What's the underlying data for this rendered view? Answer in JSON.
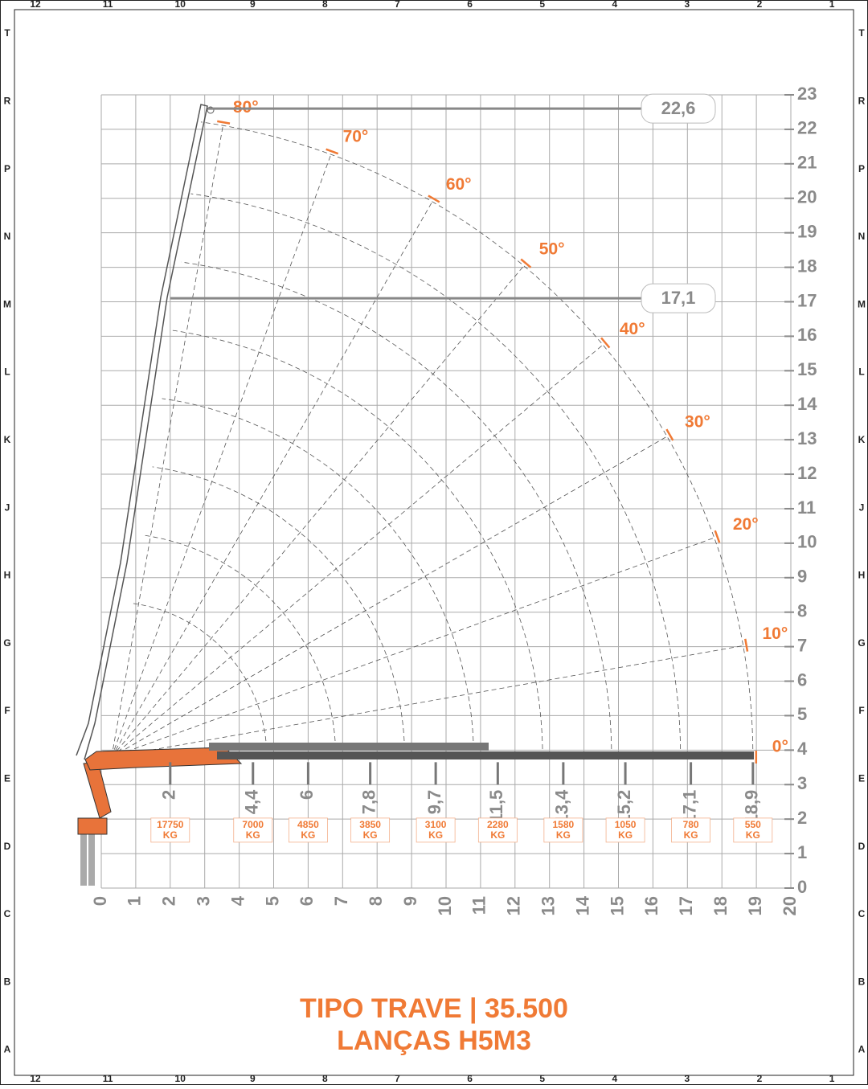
{
  "frame": {
    "columns": [
      "12",
      "11",
      "10",
      "9",
      "8",
      "7",
      "6",
      "5",
      "4",
      "3",
      "2",
      "1"
    ],
    "rows": [
      "T",
      "R",
      "P",
      "N",
      "M",
      "L",
      "K",
      "J",
      "H",
      "G",
      "F",
      "E",
      "D",
      "C",
      "B",
      "A"
    ]
  },
  "chart_data": {
    "type": "load-chart",
    "title": "TIPO TRAVE | 35.500",
    "subtitle": "LANÇAS H5M3",
    "xlim": [
      0,
      20
    ],
    "ylim": [
      0,
      23
    ],
    "xticks": [
      0,
      1,
      2,
      3,
      4,
      5,
      6,
      7,
      8,
      9,
      10,
      11,
      12,
      13,
      14,
      15,
      16,
      17,
      18,
      19,
      20
    ],
    "yticks": [
      0,
      1,
      2,
      3,
      4,
      5,
      6,
      7,
      8,
      9,
      10,
      11,
      12,
      13,
      14,
      15,
      16,
      17,
      18,
      19,
      20,
      21,
      22,
      23
    ],
    "grid": true,
    "color": "#f07a35",
    "heights": [
      {
        "value": 22.6,
        "label": "22,6"
      },
      {
        "value": 17.1,
        "label": "17,1"
      }
    ],
    "angles": [
      {
        "value": 0,
        "label": "0°"
      },
      {
        "value": 10,
        "label": "10°"
      },
      {
        "value": 20,
        "label": "20°"
      },
      {
        "value": 30,
        "label": "30°"
      },
      {
        "value": 40,
        "label": "40°"
      },
      {
        "value": 50,
        "label": "50°"
      },
      {
        "value": 60,
        "label": "60°"
      },
      {
        "value": 70,
        "label": "70°"
      },
      {
        "value": 80,
        "label": "80°"
      }
    ],
    "reach": [
      {
        "value": 2,
        "label": "2"
      },
      {
        "value": 4.4,
        "label": "4,4"
      },
      {
        "value": 6,
        "label": "6"
      },
      {
        "value": 7.8,
        "label": "7,8"
      },
      {
        "value": 9.7,
        "label": "9,7"
      },
      {
        "value": 11.5,
        "label": "11,5"
      },
      {
        "value": 13.4,
        "label": "13,4"
      },
      {
        "value": 15.2,
        "label": "15,2"
      },
      {
        "value": 17.1,
        "label": "17,1"
      },
      {
        "value": 18.9,
        "label": "18,9"
      }
    ],
    "loads": [
      17750,
      7000,
      4850,
      3850,
      3100,
      2280,
      1580,
      1050,
      780,
      550
    ],
    "load_unit": "KG"
  }
}
